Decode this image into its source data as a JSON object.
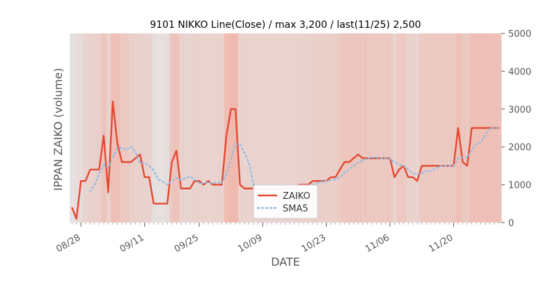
{
  "chart_data": {
    "type": "line",
    "title": "9101 NIKKO Line(Close) / max 3,200 / last(11/25) 2,500",
    "xlabel": "DATE",
    "ylabel": "IPPAN ZAIKO (volume)",
    "ylim": [
      0,
      5000
    ],
    "yticks": [
      0,
      1000,
      2000,
      3000,
      4000,
      5000
    ],
    "ytick_labels": [
      "0",
      "1000",
      "2000",
      "3000",
      "4000",
      "5000"
    ],
    "y_axis_side": "right",
    "xticks": [
      {
        "label": "08/28",
        "index": 2
      },
      {
        "label": "09/11",
        "index": 16
      },
      {
        "label": "09/25",
        "index": 28
      },
      {
        "label": "10/09",
        "index": 42
      },
      {
        "label": "10/23",
        "index": 56
      },
      {
        "label": "11/06",
        "index": 70
      },
      {
        "label": "11/20",
        "index": 84
      }
    ],
    "series": [
      {
        "name": "ZAIKO",
        "color": "#E24A33",
        "style": "solid",
        "values": [
          400,
          100,
          1100,
          1100,
          1400,
          1400,
          1400,
          2300,
          800,
          3200,
          2100,
          1600,
          1600,
          1600,
          1700,
          1800,
          1200,
          1200,
          500,
          500,
          500,
          500,
          1600,
          1900,
          900,
          900,
          900,
          1100,
          1100,
          1000,
          1100,
          1000,
          1000,
          1000,
          2300,
          3000,
          3000,
          1000,
          900,
          900,
          900,
          900,
          900,
          900,
          900,
          900,
          900,
          900,
          900,
          900,
          1000,
          1000,
          1000,
          1100,
          1100,
          1100,
          1100,
          1200,
          1200,
          1400,
          1600,
          1600,
          1700,
          1800,
          1700,
          1700,
          1700,
          1700,
          1700,
          1700,
          1700,
          1200,
          1400,
          1500,
          1200,
          1200,
          1100,
          1500,
          1500,
          1500,
          1500,
          1500,
          1500,
          1500,
          1500,
          2500,
          1600,
          1500,
          2500,
          2500,
          2500,
          2500,
          2500,
          2500,
          2500
        ]
      },
      {
        "name": "SMA5",
        "color": "#8EBAE5",
        "style": "dotted",
        "values": [
          null,
          null,
          null,
          null,
          820,
          1000,
          1280,
          1520,
          1460,
          1720,
          1960,
          1980,
          1920,
          2000,
          1860,
          1580,
          1580,
          1500,
          1380,
          1140,
          1080,
          1000,
          1100,
          1180,
          1120,
          1180,
          1220,
          1140,
          1040,
          1040,
          1060,
          1040,
          1060,
          1040,
          1280,
          1680,
          2080,
          2060,
          1840,
          1560,
          980,
          900,
          900,
          900,
          900,
          900,
          900,
          900,
          900,
          900,
          920,
          940,
          960,
          1000,
          1040,
          1080,
          1100,
          1120,
          1140,
          1200,
          1320,
          1400,
          1500,
          1580,
          1640,
          1700,
          1720,
          1720,
          1700,
          1700,
          1700,
          1600,
          1540,
          1500,
          1400,
          1300,
          1280,
          1300,
          1360,
          1360,
          1420,
          1500,
          1500,
          1500,
          1500,
          1700,
          1720,
          1720,
          1900,
          2080,
          2120,
          2320,
          2500,
          2500,
          2500
        ]
      }
    ],
    "legend": {
      "position": "bottom-center",
      "entries": [
        "ZAIKO",
        "SMA5"
      ]
    },
    "background_bands": [
      0.05,
      0.12,
      0.15,
      0.25,
      0.3,
      0.32,
      0.35,
      0.55,
      0.3,
      0.6,
      0.6,
      0.45,
      0.45,
      0.35,
      0.35,
      0.32,
      0.3,
      0.3,
      0.1,
      0.08,
      0.08,
      0.1,
      0.5,
      0.55,
      0.3,
      0.25,
      0.25,
      0.3,
      0.3,
      0.28,
      0.28,
      0.28,
      0.3,
      0.3,
      0.65,
      0.7,
      0.7,
      0.3,
      0.28,
      0.28,
      0.28,
      0.28,
      0.28,
      0.28,
      0.28,
      0.28,
      0.28,
      0.28,
      0.28,
      0.28,
      0.3,
      0.3,
      0.3,
      0.35,
      0.35,
      0.35,
      0.35,
      0.35,
      0.35,
      0.45,
      0.5,
      0.5,
      0.5,
      0.5,
      0.48,
      0.48,
      0.45,
      0.45,
      0.45,
      0.45,
      0.45,
      0.3,
      0.45,
      0.45,
      0.3,
      0.3,
      0.28,
      0.45,
      0.45,
      0.45,
      0.45,
      0.45,
      0.45,
      0.45,
      0.45,
      0.6,
      0.5,
      0.45,
      0.6,
      0.6,
      0.6,
      0.6,
      0.6,
      0.6,
      0.6
    ]
  }
}
